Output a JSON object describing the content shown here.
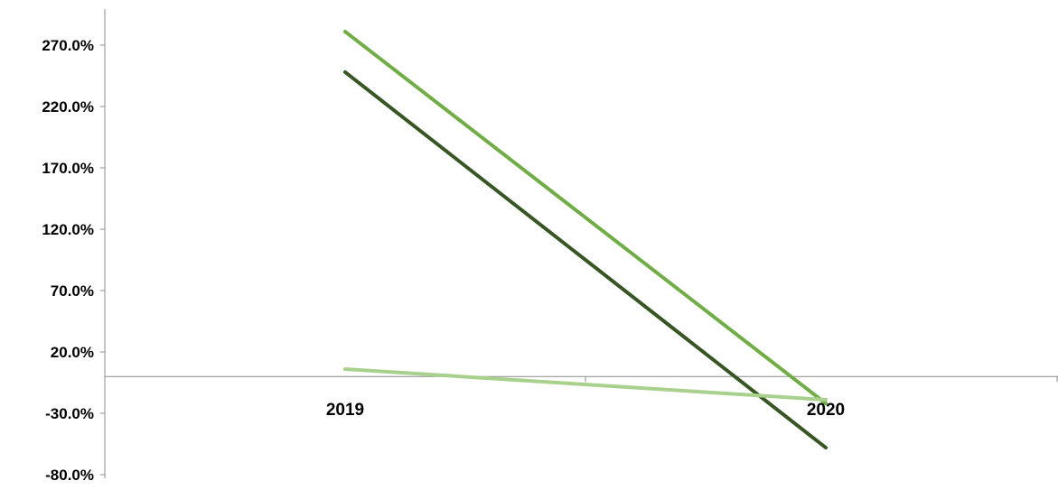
{
  "chart_data": {
    "type": "line",
    "x": [
      "2019",
      "2020"
    ],
    "series": [
      {
        "values": [
          281.0,
          -22.0
        ],
        "color": "#70ad47"
      },
      {
        "values": [
          248.0,
          -58.0
        ],
        "color": "#375623"
      },
      {
        "values": [
          6.0,
          -19.0
        ],
        "color": "#a9d18e"
      }
    ],
    "y_ticks": [
      "270.0%",
      "220.0%",
      "170.0%",
      "120.0%",
      "70.0%",
      "20.0%",
      "-30.0%",
      "-80.0%"
    ],
    "y_tick_values": [
      270,
      220,
      170,
      120,
      70,
      20,
      -30,
      -80
    ],
    "ylim": [
      -80,
      270
    ],
    "grid": false,
    "legend": "none"
  }
}
